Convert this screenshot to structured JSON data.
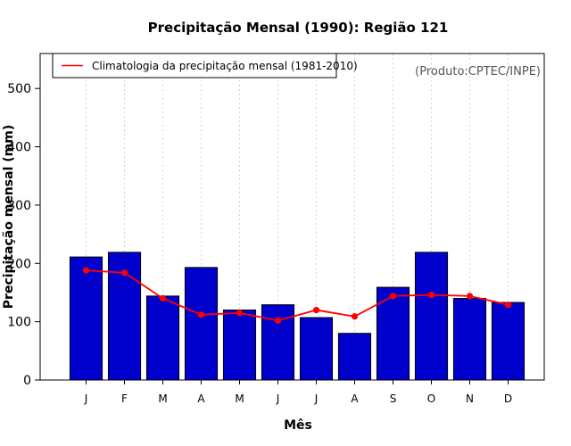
{
  "chart_data": {
    "type": "bar",
    "title": "Precipitação Mensal (1990): Região 121",
    "xlabel": "Mês",
    "ylabel": "Precipitação mensal (mm)",
    "ylim": [
      0,
      560
    ],
    "yticks": [
      0,
      100,
      200,
      300,
      400,
      500
    ],
    "grid": "vertical dotted",
    "categories": [
      "J",
      "F",
      "M",
      "A",
      "M",
      "J",
      "J",
      "A",
      "S",
      "O",
      "N",
      "D"
    ],
    "series": [
      {
        "name": "Precipitação mensal (1990)",
        "kind": "bar",
        "color": "#0000cc",
        "values": [
          211,
          219,
          144,
          193,
          120,
          129,
          107,
          80,
          159,
          219,
          140,
          133
        ]
      },
      {
        "name": "Climatologia da precipitação mensal (1981-2010)",
        "kind": "line",
        "color": "#ff0000",
        "values": [
          188,
          184,
          140,
          112,
          115,
          102,
          120,
          109,
          144,
          146,
          144,
          129
        ]
      }
    ],
    "legend": {
      "placement": "top-left",
      "entries": [
        "Climatologia da precipitação mensal (1981-2010)"
      ]
    },
    "credit": "(Produto:CPTEC/INPE)"
  }
}
